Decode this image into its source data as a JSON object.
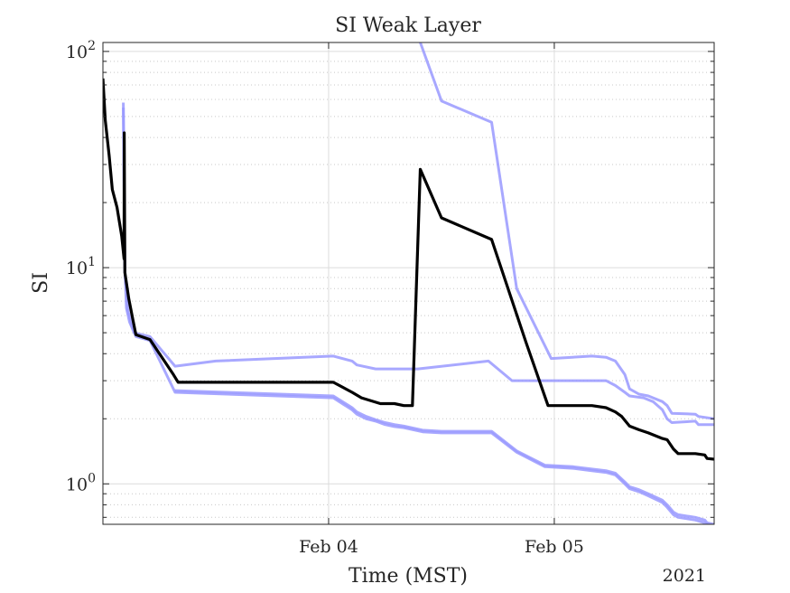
{
  "chart_data": {
    "type": "line",
    "title": "SI Weak Layer",
    "xlabel": "Time (MST)",
    "ylabel": "SI",
    "year_label": "2021",
    "y_scale": "log",
    "ylim": [
      0.65,
      110
    ],
    "xlim": [
      "2021-02-03T00:00",
      "2021-02-05T17:00"
    ],
    "x_ticks": [
      {
        "value": "2021-02-04T00:00",
        "label": "Feb 04"
      },
      {
        "value": "2021-02-05T00:00",
        "label": "Feb 05"
      }
    ],
    "y_ticks": [
      {
        "value": 1,
        "base": "10",
        "exp": "0"
      },
      {
        "value": 10,
        "base": "10",
        "exp": "1"
      },
      {
        "value": 100,
        "base": "10",
        "exp": "2"
      }
    ],
    "grid": true,
    "legend": "none",
    "colors": {
      "main": "#000000",
      "band": "#9999ff"
    },
    "series": [
      {
        "role": "main",
        "points": [
          [
            "2021-02-03T00:00",
            75
          ],
          [
            "2021-02-03T00:15",
            48
          ],
          [
            "2021-02-03T00:40",
            33
          ],
          [
            "2021-02-03T01:00",
            23
          ],
          [
            "2021-02-03T01:30",
            19
          ],
          [
            "2021-02-03T02:00",
            14
          ],
          [
            "2021-02-03T02:15",
            11
          ],
          [
            "2021-02-03T02:16",
            42
          ],
          [
            "2021-02-03T02:20",
            9.5
          ],
          [
            "2021-02-03T02:45",
            7.2
          ],
          [
            "2021-02-03T03:10",
            5.8
          ],
          [
            "2021-02-03T03:30",
            4.9
          ],
          [
            "2021-02-03T05:00",
            4.65
          ],
          [
            "2021-02-03T07:30",
            3.2
          ],
          [
            "2021-02-03T08:00",
            2.95
          ],
          [
            "2021-02-04T00:30",
            2.95
          ],
          [
            "2021-02-04T02:30",
            2.65
          ],
          [
            "2021-02-04T03:30",
            2.5
          ],
          [
            "2021-02-04T05:30",
            2.35
          ],
          [
            "2021-02-04T07:00",
            2.35
          ],
          [
            "2021-02-04T08:00",
            2.3
          ],
          [
            "2021-02-04T08:55",
            2.3
          ],
          [
            "2021-02-04T09:45",
            28.5
          ],
          [
            "2021-02-04T12:00",
            17
          ],
          [
            "2021-02-04T17:20",
            13.5
          ],
          [
            "2021-02-04T21:00",
            4.5
          ],
          [
            "2021-02-04T23:20",
            2.3
          ],
          [
            "2021-02-05T04:00",
            2.3
          ],
          [
            "2021-02-05T05:30",
            2.25
          ],
          [
            "2021-02-05T06:30",
            2.15
          ],
          [
            "2021-02-05T07:10",
            2.05
          ],
          [
            "2021-02-05T08:00",
            1.85
          ],
          [
            "2021-02-05T09:00",
            1.78
          ],
          [
            "2021-02-05T10:00",
            1.72
          ],
          [
            "2021-02-05T11:30",
            1.62
          ],
          [
            "2021-02-05T12:00",
            1.6
          ],
          [
            "2021-02-05T12:40",
            1.45
          ],
          [
            "2021-02-05T13:10",
            1.38
          ],
          [
            "2021-02-05T15:00",
            1.38
          ],
          [
            "2021-02-05T16:00",
            1.36
          ],
          [
            "2021-02-05T16:15",
            1.31
          ],
          [
            "2021-02-05T17:00",
            1.3
          ]
        ]
      },
      {
        "role": "upper-band",
        "points": [
          [
            "2021-02-03T02:10",
            58
          ],
          [
            "2021-02-03T02:20",
            10
          ],
          [
            "2021-02-03T02:30",
            6.5
          ],
          [
            "2021-02-03T02:50",
            5.6
          ],
          [
            "2021-02-03T03:20",
            5.0
          ],
          [
            "2021-02-03T05:00",
            4.8
          ],
          [
            "2021-02-03T07:40",
            3.5
          ],
          [
            "2021-02-03T12:00",
            3.7
          ],
          [
            "2021-02-04T00:30",
            3.9
          ],
          [
            "2021-02-04T02:30",
            3.7
          ],
          [
            "2021-02-04T03:00",
            3.55
          ],
          [
            "2021-02-04T05:00",
            3.4
          ],
          [
            "2021-02-04T07:00",
            3.4
          ],
          [
            "2021-02-04T09:30",
            3.4
          ],
          [
            "2021-02-04T17:00",
            3.7
          ],
          [
            "2021-02-04T19:30",
            3.0
          ],
          [
            "2021-02-05T02:00",
            3.0
          ],
          [
            "2021-02-05T05:30",
            3.0
          ],
          [
            "2021-02-05T06:30",
            2.85
          ],
          [
            "2021-02-05T07:30",
            2.65
          ],
          [
            "2021-02-05T08:00",
            2.55
          ],
          [
            "2021-02-05T09:30",
            2.5
          ],
          [
            "2021-02-05T10:30",
            2.4
          ],
          [
            "2021-02-05T11:30",
            2.2
          ],
          [
            "2021-02-05T12:00",
            2.0
          ],
          [
            "2021-02-05T12:30",
            1.92
          ],
          [
            "2021-02-05T15:00",
            1.95
          ],
          [
            "2021-02-05T15:20",
            1.88
          ],
          [
            "2021-02-05T17:00",
            1.88
          ]
        ]
      },
      {
        "role": "lower-band",
        "points": [
          [
            "2021-02-03T02:10",
            55
          ],
          [
            "2021-02-03T02:20",
            9.5
          ],
          [
            "2021-02-03T02:40",
            6.3
          ],
          [
            "2021-02-03T03:10",
            5.2
          ],
          [
            "2021-02-03T03:30",
            4.8
          ],
          [
            "2021-02-03T05:00",
            4.6
          ],
          [
            "2021-02-03T07:40",
            2.65
          ],
          [
            "2021-02-04T00:30",
            2.5
          ],
          [
            "2021-02-04T02:30",
            2.2
          ],
          [
            "2021-02-04T03:00",
            2.1
          ],
          [
            "2021-02-04T04:00",
            2.0
          ],
          [
            "2021-02-04T05:00",
            1.95
          ],
          [
            "2021-02-04T06:00",
            1.88
          ],
          [
            "2021-02-04T07:00",
            1.84
          ],
          [
            "2021-02-04T08:00",
            1.82
          ],
          [
            "2021-02-04T10:00",
            1.74
          ],
          [
            "2021-02-04T12:00",
            1.72
          ],
          [
            "2021-02-04T17:20",
            1.72
          ],
          [
            "2021-02-04T20:00",
            1.4
          ],
          [
            "2021-02-04T23:00",
            1.2
          ],
          [
            "2021-02-05T02:00",
            1.18
          ],
          [
            "2021-02-05T04:00",
            1.15
          ],
          [
            "2021-02-05T05:30",
            1.13
          ],
          [
            "2021-02-05T06:30",
            1.1
          ],
          [
            "2021-02-05T07:30",
            1.0
          ],
          [
            "2021-02-05T08:00",
            0.95
          ],
          [
            "2021-02-05T09:00",
            0.92
          ],
          [
            "2021-02-05T10:00",
            0.88
          ],
          [
            "2021-02-05T11:30",
            0.82
          ],
          [
            "2021-02-05T12:00",
            0.78
          ],
          [
            "2021-02-05T12:40",
            0.72
          ],
          [
            "2021-02-05T13:10",
            0.7
          ],
          [
            "2021-02-05T15:00",
            0.68
          ],
          [
            "2021-02-05T16:00",
            0.66
          ],
          [
            "2021-02-05T16:15",
            0.65
          ],
          [
            "2021-02-05T17:00",
            0.64
          ]
        ]
      },
      {
        "role": "upper-outer-band",
        "points": [
          [
            "2021-02-04T09:45",
            110
          ],
          [
            "2021-02-04T12:00",
            59
          ],
          [
            "2021-02-04T17:20",
            47
          ],
          [
            "2021-02-04T20:00",
            8.0
          ],
          [
            "2021-02-04T23:40",
            3.8
          ],
          [
            "2021-02-05T04:00",
            3.9
          ],
          [
            "2021-02-05T05:30",
            3.85
          ],
          [
            "2021-02-05T06:30",
            3.7
          ],
          [
            "2021-02-05T07:30",
            3.2
          ],
          [
            "2021-02-05T08:00",
            2.75
          ],
          [
            "2021-02-05T09:00",
            2.6
          ],
          [
            "2021-02-05T10:00",
            2.55
          ],
          [
            "2021-02-05T11:30",
            2.4
          ],
          [
            "2021-02-05T12:00",
            2.3
          ],
          [
            "2021-02-05T12:30",
            2.12
          ],
          [
            "2021-02-05T15:00",
            2.1
          ],
          [
            "2021-02-05T15:20",
            2.05
          ],
          [
            "2021-02-05T17:00",
            2.0
          ]
        ]
      },
      {
        "role": "lower-outer-band",
        "points": [
          [
            "2021-02-03T07:40",
            2.7
          ],
          [
            "2021-02-04T00:30",
            2.55
          ],
          [
            "2021-02-04T02:30",
            2.25
          ],
          [
            "2021-02-04T03:00",
            2.15
          ],
          [
            "2021-02-04T04:00",
            2.05
          ],
          [
            "2021-02-04T05:00",
            1.98
          ],
          [
            "2021-02-04T06:00",
            1.92
          ],
          [
            "2021-02-04T07:00",
            1.88
          ],
          [
            "2021-02-04T08:00",
            1.85
          ],
          [
            "2021-02-04T10:00",
            1.77
          ],
          [
            "2021-02-04T12:00",
            1.75
          ],
          [
            "2021-02-04T17:20",
            1.75
          ],
          [
            "2021-02-04T20:00",
            1.42
          ],
          [
            "2021-02-04T23:00",
            1.22
          ],
          [
            "2021-02-05T02:00",
            1.2
          ],
          [
            "2021-02-05T04:00",
            1.17
          ],
          [
            "2021-02-05T05:30",
            1.15
          ],
          [
            "2021-02-05T06:30",
            1.12
          ],
          [
            "2021-02-05T07:30",
            1.02
          ],
          [
            "2021-02-05T08:00",
            0.97
          ],
          [
            "2021-02-05T09:00",
            0.94
          ],
          [
            "2021-02-05T10:00",
            0.9
          ],
          [
            "2021-02-05T11:30",
            0.84
          ],
          [
            "2021-02-05T12:00",
            0.8
          ],
          [
            "2021-02-05T12:40",
            0.74
          ],
          [
            "2021-02-05T13:10",
            0.72
          ],
          [
            "2021-02-05T15:00",
            0.7
          ],
          [
            "2021-02-05T16:00",
            0.68
          ],
          [
            "2021-02-05T16:15",
            0.66
          ],
          [
            "2021-02-05T17:00",
            0.65
          ]
        ]
      }
    ]
  }
}
